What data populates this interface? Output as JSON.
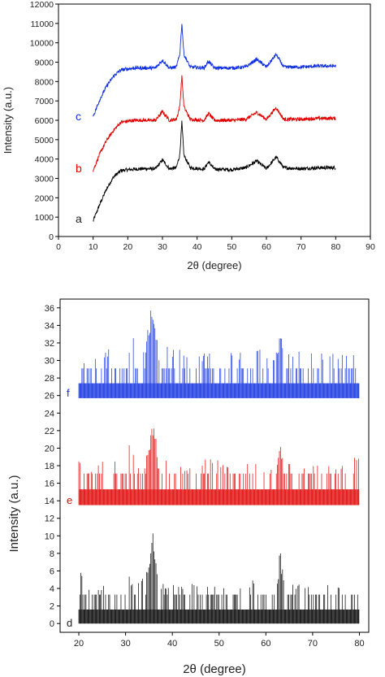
{
  "colors": {
    "a": "#000000",
    "b": "#e00000",
    "c": "#1030e0",
    "d": "#000000",
    "e": "#e00000",
    "f": "#1030e0",
    "axis": "#000000"
  },
  "chart_data": [
    {
      "type": "line",
      "title": "",
      "xlabel": "2θ (degree)",
      "ylabel": "Intensity (a.u.)",
      "xlim": [
        0,
        90
      ],
      "ylim": [
        0,
        12000
      ],
      "xticks": [
        0,
        10,
        20,
        30,
        40,
        50,
        60,
        70,
        80,
        90
      ],
      "yticks": [
        0,
        1000,
        2000,
        3000,
        4000,
        5000,
        6000,
        7000,
        8000,
        9000,
        10000,
        11000,
        12000
      ],
      "grid": false,
      "series": [
        {
          "name": "a",
          "color": "#000000",
          "x": [
            10,
            12,
            14,
            16,
            18,
            20,
            22,
            25,
            28,
            30,
            32,
            34,
            35,
            35.6,
            36.2,
            38,
            42,
            43.3,
            45,
            50,
            54,
            57.2,
            60,
            62.8,
            65,
            70,
            75,
            80
          ],
          "y": [
            800,
            1700,
            2500,
            3100,
            3400,
            3450,
            3480,
            3500,
            3500,
            3950,
            3500,
            3550,
            4200,
            5900,
            4200,
            3550,
            3480,
            3850,
            3480,
            3450,
            3550,
            3900,
            3500,
            4100,
            3550,
            3500,
            3550,
            3550
          ]
        },
        {
          "name": "b",
          "color": "#e00000",
          "x": [
            10,
            12,
            14,
            16,
            18,
            20,
            22,
            25,
            28,
            30,
            32,
            34,
            35,
            35.6,
            36.2,
            38,
            42,
            43.3,
            45,
            50,
            54,
            57.2,
            60,
            62.8,
            65,
            70,
            75,
            80
          ],
          "y": [
            3400,
            4300,
            5000,
            5500,
            5900,
            5950,
            6000,
            6000,
            6000,
            6450,
            6000,
            6050,
            6700,
            8300,
            6700,
            6050,
            6000,
            6350,
            6000,
            6000,
            6050,
            6400,
            6050,
            6650,
            6050,
            6050,
            6100,
            6100
          ]
        },
        {
          "name": "c",
          "color": "#1030e0",
          "x": [
            10,
            12,
            14,
            16,
            18,
            20,
            22,
            25,
            28,
            30,
            32,
            34,
            35,
            35.6,
            36.2,
            38,
            42,
            43.3,
            45,
            50,
            54,
            57.2,
            60,
            62.8,
            65,
            70,
            75,
            80
          ],
          "y": [
            6200,
            7100,
            7800,
            8300,
            8600,
            8650,
            8700,
            8700,
            8700,
            9100,
            8700,
            8750,
            9400,
            11000,
            9400,
            8750,
            8700,
            9050,
            8700,
            8700,
            8750,
            9150,
            8750,
            9400,
            8750,
            8750,
            8800,
            8800
          ]
        }
      ],
      "annotations": [
        "a",
        "b",
        "c"
      ]
    },
    {
      "type": "line",
      "title": "",
      "xlabel": "2θ (degree)",
      "ylabel": "Intensity (a.u.)",
      "xlim": [
        16,
        82
      ],
      "ylim": [
        -1,
        37
      ],
      "xticks": [
        20,
        30,
        40,
        50,
        60,
        70,
        80
      ],
      "yticks": [
        0,
        2,
        4,
        6,
        8,
        10,
        12,
        14,
        16,
        18,
        20,
        22,
        24,
        26,
        28,
        30,
        32,
        34,
        36
      ],
      "grid": false,
      "series": [
        {
          "name": "d",
          "color": "#000000",
          "base": 0,
          "low": 1.6,
          "high": 3.3,
          "x": [
            20,
            22,
            25,
            28,
            29.5,
            30.5,
            32,
            33.5,
            35,
            35.6,
            36,
            36.4,
            37,
            40,
            43,
            47,
            54,
            57,
            57.3,
            60,
            62.8,
            63,
            63.3,
            66,
            70,
            75,
            79
          ],
          "y": [
            7,
            4.5,
            4.5,
            4.5,
            5,
            6.5,
            4.5,
            5,
            6.5,
            12.5,
            9,
            7.5,
            5,
            4.5,
            4.5,
            4.5,
            4.5,
            5.5,
            6.5,
            4.5,
            5.5,
            10.5,
            7,
            4.5,
            4.5,
            4.5,
            4.5
          ]
        },
        {
          "name": "e",
          "color": "#e00000",
          "base": 13.5,
          "low": 15.3,
          "high": 17.1,
          "x": [
            20,
            22,
            25,
            28,
            29.5,
            30.5,
            32,
            33.5,
            35,
            35.6,
            36,
            36.4,
            37,
            40,
            43,
            47,
            54,
            57,
            57.3,
            60,
            62.8,
            63,
            63.3,
            66,
            70,
            75,
            79
          ],
          "y": [
            19,
            17,
            19,
            18.5,
            18,
            21,
            19,
            17.5,
            20,
            24.3,
            22.5,
            22.5,
            18,
            19,
            17.5,
            19,
            18,
            19,
            19,
            17,
            19,
            22.5,
            19,
            18,
            18,
            18,
            19
          ]
        },
        {
          "name": "f",
          "color": "#1030e0",
          "base": 25.7,
          "low": 27.4,
          "high": 29.1,
          "x": [
            20,
            22,
            25,
            28,
            29.5,
            30.5,
            32,
            33.5,
            35,
            35.6,
            36,
            36.4,
            37,
            40,
            43,
            47,
            54,
            57,
            57.3,
            60,
            62.8,
            63,
            63.3,
            66,
            70,
            75,
            79
          ],
          "y": [
            31,
            30,
            31,
            32,
            31,
            33,
            32.5,
            31,
            34.5,
            36.4,
            34.5,
            34.5,
            31,
            32,
            31,
            31,
            31,
            31,
            32,
            31,
            31,
            34.5,
            33,
            31,
            31,
            31,
            31
          ]
        }
      ],
      "annotations": [
        "d",
        "e",
        "f"
      ]
    }
  ],
  "labels": {
    "top_ylabel": "Intensity (a.u.)",
    "top_xlabel": "2θ (degree)",
    "bottom_ylabel": "Intensity (a.u.)",
    "bottom_xlabel": "2θ (degree)",
    "a": "a",
    "b": "b",
    "c": "c",
    "d": "d",
    "e": "e",
    "f": "f"
  }
}
